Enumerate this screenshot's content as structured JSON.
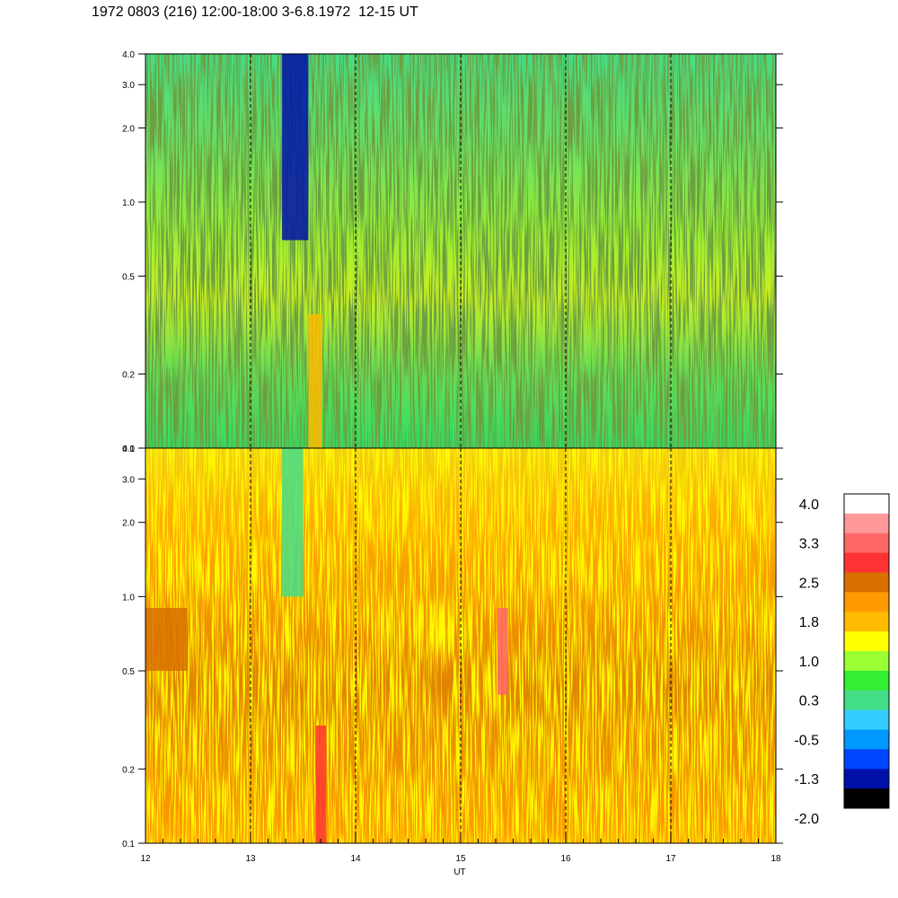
{
  "title": "1972 0803 (216) 12:00-18:00 3-6.8.1972  12-15 UT",
  "chart_data": [
    {
      "type": "heatmap",
      "panel": "top",
      "xlabel": "",
      "ylabel": "",
      "xlim": [
        12,
        18
      ],
      "ylim": [
        0.1,
        4.0
      ],
      "yscale": "log",
      "y_ticks": [
        {
          "value": 0.1,
          "label": "0.1"
        },
        {
          "value": 0.2,
          "label": "0.2"
        },
        {
          "value": 0.5,
          "label": "0.5"
        },
        {
          "value": 1.0,
          "label": "1.0"
        },
        {
          "value": 2.0,
          "label": "2.0"
        },
        {
          "value": 3.0,
          "label": "3.0"
        },
        {
          "value": 4.0,
          "label": "4.0"
        }
      ],
      "dashed_hour_lines": [
        13,
        14,
        15,
        16,
        17
      ],
      "dominant_range": [
        -0.5,
        1.0
      ],
      "features": [
        {
          "x_start": 13.3,
          "x_end": 13.55,
          "y_start": 0.7,
          "y_end": 4.0,
          "value": -1.6
        },
        {
          "x_start": 13.55,
          "x_end": 13.68,
          "y_start": 0.1,
          "y_end": 0.35,
          "value": 1.6
        }
      ]
    },
    {
      "type": "heatmap",
      "panel": "bottom",
      "xlabel": "UT",
      "ylabel": "",
      "xlim": [
        12,
        18
      ],
      "ylim": [
        0.1,
        4.0
      ],
      "yscale": "log",
      "x_ticks": [
        "12",
        "13",
        "14",
        "15",
        "16",
        "17",
        "18"
      ],
      "y_ticks": [
        {
          "value": 0.1,
          "label": "0.1"
        },
        {
          "value": 0.2,
          "label": "0.2"
        },
        {
          "value": 0.5,
          "label": "0.5"
        },
        {
          "value": 1.0,
          "label": "1.0"
        },
        {
          "value": 2.0,
          "label": "2.0"
        },
        {
          "value": 3.0,
          "label": "3.0"
        },
        {
          "value": 4.0,
          "label": "4.0"
        }
      ],
      "dashed_hour_lines": [
        13,
        14,
        15,
        16,
        17
      ],
      "dominant_range": [
        1.0,
        2.3
      ],
      "features": [
        {
          "x_start": 13.3,
          "x_end": 13.5,
          "y_start": 1.0,
          "y_end": 4.0,
          "value": 0.0
        },
        {
          "x_start": 13.62,
          "x_end": 13.72,
          "y_start": 0.1,
          "y_end": 0.3,
          "value": 2.8
        },
        {
          "x_start": 15.35,
          "x_end": 15.45,
          "y_start": 0.4,
          "y_end": 0.9,
          "value": 2.9
        },
        {
          "x_start": 12.0,
          "x_end": 12.4,
          "y_start": 0.5,
          "y_end": 0.9,
          "value": 2.2
        }
      ]
    }
  ],
  "colorbar": {
    "labels": [
      "4.0",
      "3.3",
      "2.5",
      "1.8",
      "1.0",
      "0.3",
      "-0.5",
      "-1.3",
      "-2.0"
    ],
    "colors": [
      "#ffffff",
      "#ff9999",
      "#ff6666",
      "#ff3333",
      "#d87000",
      "#ff9900",
      "#ffbb00",
      "#ffff00",
      "#99ff33",
      "#33ee33",
      "#44dd88",
      "#33ccff",
      "#0099ff",
      "#0044ff",
      "#0011aa",
      "#000000"
    ]
  }
}
